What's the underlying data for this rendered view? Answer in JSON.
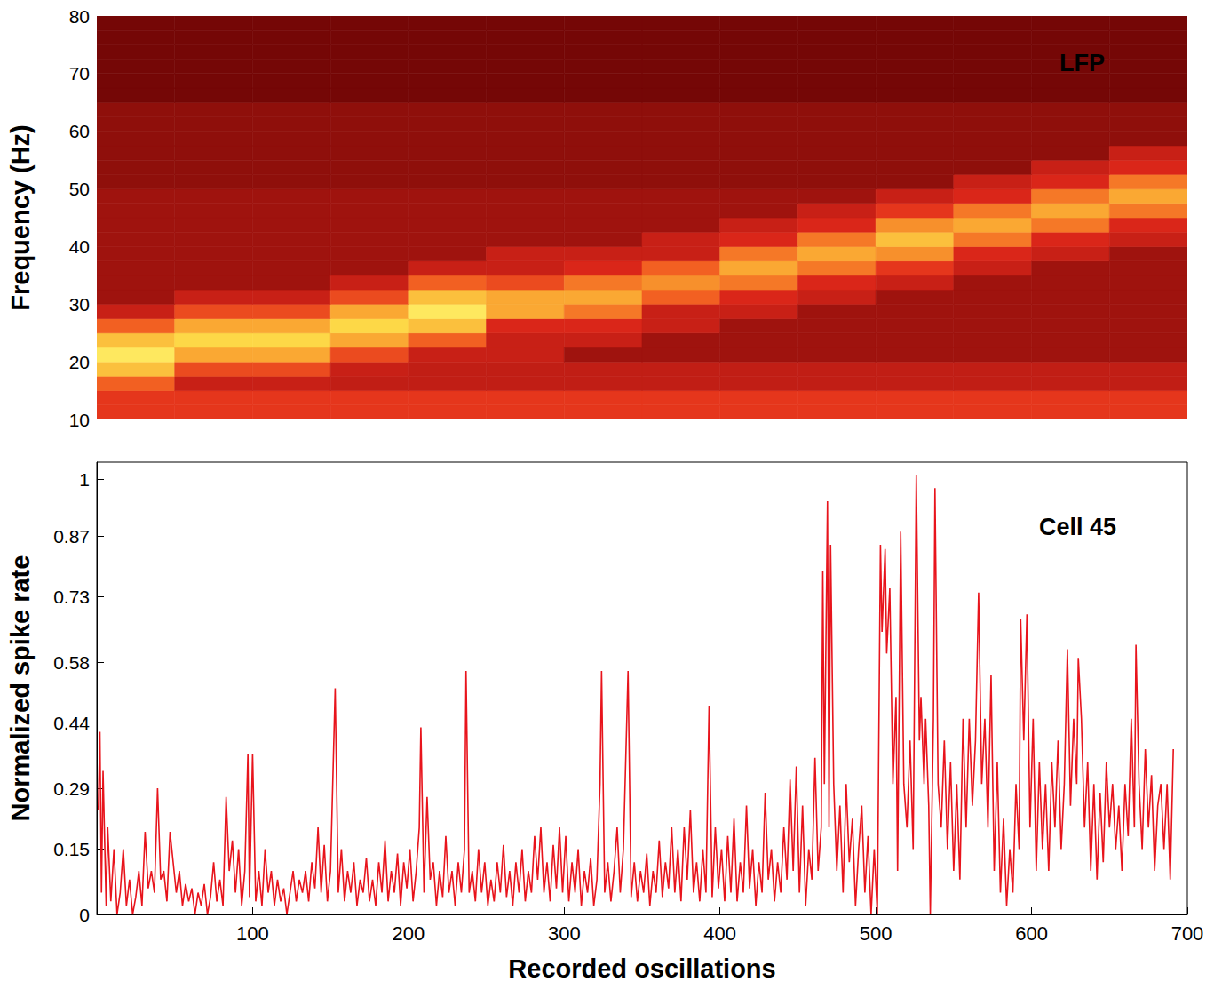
{
  "chart_data": [
    {
      "type": "heatmap",
      "title": "LFP",
      "ylabel": "Frequency (Hz)",
      "xlim": [
        0,
        700
      ],
      "ylim": [
        10,
        80
      ],
      "yticks": [
        10,
        20,
        30,
        40,
        50,
        60,
        70,
        80
      ],
      "tick_labels": "y",
      "x_edges": [
        0,
        50,
        100,
        150,
        200,
        250,
        300,
        350,
        400,
        450,
        500,
        550,
        600,
        650,
        700
      ],
      "y_edges": [
        10,
        12.5,
        15,
        17.5,
        20,
        22.5,
        25,
        27.5,
        30,
        32.5,
        35,
        37.5,
        40,
        42.5,
        45,
        47.5,
        50,
        52.5,
        55,
        57.5,
        60,
        62.5,
        65,
        67.5,
        70,
        72.5,
        75,
        77.5,
        80
      ],
      "zlim": [
        0.2,
        1
      ],
      "cells": [
        [
          0.5,
          0.5,
          0.5,
          0.5,
          0.5,
          0.5,
          0.5,
          0.5,
          0.5,
          0.5,
          0.5,
          0.5,
          0.5,
          0.5
        ],
        [
          0.5,
          0.5,
          0.5,
          0.5,
          0.5,
          0.5,
          0.5,
          0.5,
          0.5,
          0.5,
          0.5,
          0.5,
          0.5,
          0.5
        ],
        [
          0.6,
          0.4,
          0.4,
          0.38,
          0.38,
          0.38,
          0.38,
          0.38,
          0.38,
          0.38,
          0.38,
          0.38,
          0.38,
          0.38
        ],
        [
          0.8,
          0.55,
          0.55,
          0.4,
          0.38,
          0.38,
          0.38,
          0.38,
          0.38,
          0.38,
          0.38,
          0.38,
          0.38,
          0.38
        ],
        [
          0.9,
          0.75,
          0.75,
          0.55,
          0.4,
          0.4,
          0.3,
          0.3,
          0.3,
          0.3,
          0.3,
          0.3,
          0.3,
          0.3
        ],
        [
          0.8,
          0.85,
          0.85,
          0.75,
          0.6,
          0.4,
          0.4,
          0.3,
          0.3,
          0.3,
          0.3,
          0.3,
          0.3,
          0.3
        ],
        [
          0.6,
          0.75,
          0.75,
          0.85,
          0.8,
          0.45,
          0.45,
          0.4,
          0.3,
          0.3,
          0.3,
          0.3,
          0.3,
          0.3
        ],
        [
          0.4,
          0.55,
          0.55,
          0.75,
          0.9,
          0.75,
          0.65,
          0.4,
          0.4,
          0.3,
          0.3,
          0.3,
          0.3,
          0.3
        ],
        [
          0.3,
          0.4,
          0.4,
          0.55,
          0.8,
          0.75,
          0.75,
          0.6,
          0.45,
          0.4,
          0.3,
          0.3,
          0.3,
          0.3
        ],
        [
          0.3,
          0.3,
          0.3,
          0.4,
          0.6,
          0.55,
          0.65,
          0.7,
          0.65,
          0.45,
          0.4,
          0.3,
          0.3,
          0.3
        ],
        [
          0.3,
          0.3,
          0.3,
          0.3,
          0.4,
          0.4,
          0.45,
          0.6,
          0.75,
          0.65,
          0.5,
          0.4,
          0.3,
          0.3
        ],
        [
          0.3,
          0.3,
          0.3,
          0.3,
          0.3,
          0.4,
          0.4,
          0.4,
          0.65,
          0.75,
          0.7,
          0.45,
          0.4,
          0.3
        ],
        [
          0.3,
          0.3,
          0.3,
          0.3,
          0.3,
          0.3,
          0.3,
          0.4,
          0.45,
          0.65,
          0.8,
          0.65,
          0.45,
          0.4
        ],
        [
          0.3,
          0.3,
          0.3,
          0.3,
          0.3,
          0.3,
          0.3,
          0.3,
          0.4,
          0.45,
          0.7,
          0.75,
          0.65,
          0.45
        ],
        [
          0.3,
          0.3,
          0.3,
          0.3,
          0.3,
          0.3,
          0.3,
          0.3,
          0.3,
          0.4,
          0.5,
          0.65,
          0.75,
          0.65
        ],
        [
          0.3,
          0.3,
          0.3,
          0.3,
          0.3,
          0.3,
          0.3,
          0.3,
          0.3,
          0.3,
          0.4,
          0.45,
          0.65,
          0.75
        ],
        [
          0.27,
          0.27,
          0.27,
          0.27,
          0.27,
          0.27,
          0.27,
          0.27,
          0.27,
          0.27,
          0.27,
          0.4,
          0.45,
          0.65
        ],
        [
          0.27,
          0.27,
          0.27,
          0.27,
          0.27,
          0.27,
          0.27,
          0.27,
          0.27,
          0.27,
          0.27,
          0.27,
          0.4,
          0.45
        ],
        [
          0.27,
          0.27,
          0.27,
          0.27,
          0.27,
          0.27,
          0.27,
          0.27,
          0.27,
          0.27,
          0.27,
          0.27,
          0.27,
          0.4
        ],
        [
          0.27,
          0.27,
          0.27,
          0.27,
          0.27,
          0.27,
          0.27,
          0.27,
          0.27,
          0.27,
          0.27,
          0.27,
          0.27,
          0.27
        ],
        [
          0.27,
          0.27,
          0.27,
          0.27,
          0.27,
          0.27,
          0.27,
          0.27,
          0.27,
          0.27,
          0.27,
          0.27,
          0.27,
          0.27
        ],
        [
          0.27,
          0.27,
          0.27,
          0.27,
          0.27,
          0.27,
          0.27,
          0.27,
          0.27,
          0.27,
          0.27,
          0.27,
          0.27,
          0.27
        ],
        [
          0.22,
          0.22,
          0.22,
          0.22,
          0.22,
          0.22,
          0.22,
          0.22,
          0.22,
          0.22,
          0.22,
          0.22,
          0.22,
          0.22
        ],
        [
          0.22,
          0.22,
          0.22,
          0.22,
          0.22,
          0.22,
          0.22,
          0.22,
          0.22,
          0.22,
          0.22,
          0.22,
          0.22,
          0.22
        ],
        [
          0.22,
          0.22,
          0.22,
          0.22,
          0.22,
          0.22,
          0.22,
          0.22,
          0.22,
          0.22,
          0.22,
          0.22,
          0.22,
          0.22
        ],
        [
          0.22,
          0.22,
          0.22,
          0.22,
          0.22,
          0.22,
          0.22,
          0.22,
          0.22,
          0.22,
          0.22,
          0.22,
          0.22,
          0.22
        ],
        [
          0.22,
          0.22,
          0.22,
          0.22,
          0.22,
          0.22,
          0.22,
          0.22,
          0.22,
          0.22,
          0.22,
          0.22,
          0.22,
          0.22
        ],
        [
          0.22,
          0.22,
          0.22,
          0.22,
          0.22,
          0.22,
          0.22,
          0.22,
          0.22,
          0.22,
          0.22,
          0.22,
          0.22,
          0.22
        ]
      ]
    },
    {
      "type": "line",
      "title": "Cell 45",
      "xlabel": "Recorded oscillations",
      "ylabel": "Normalized spike rate",
      "color": "#e8141c",
      "xlim": [
        0,
        700
      ],
      "ylim": [
        0,
        1.04
      ],
      "xticks": [
        100,
        200,
        300,
        400,
        500,
        600,
        700
      ],
      "yticks": [
        0,
        0.15,
        0.29,
        0.44,
        0.58,
        0.73,
        0.87,
        1
      ],
      "x": [
        1,
        2,
        3,
        4,
        6,
        7,
        9,
        11,
        13,
        15,
        17,
        19,
        21,
        23,
        25,
        27,
        29,
        31,
        33,
        35,
        37,
        39,
        41,
        43,
        45,
        47,
        49,
        51,
        53,
        55,
        57,
        59,
        61,
        63,
        65,
        67,
        69,
        71,
        73,
        75,
        77,
        79,
        81,
        83,
        85,
        87,
        89,
        91,
        93,
        95,
        97,
        98,
        100,
        102,
        104,
        106,
        108,
        110,
        112,
        114,
        116,
        118,
        120,
        122,
        124,
        126,
        128,
        130,
        132,
        134,
        136,
        138,
        140,
        142,
        144,
        146,
        148,
        150,
        153,
        155,
        157,
        159,
        161,
        163,
        165,
        167,
        169,
        171,
        173,
        175,
        177,
        179,
        181,
        183,
        185,
        187,
        189,
        191,
        193,
        195,
        197,
        199,
        201,
        203,
        205,
        207,
        208,
        210,
        212,
        214,
        216,
        218,
        220,
        222,
        224,
        226,
        228,
        230,
        232,
        234,
        236,
        237,
        239,
        241,
        243,
        245,
        247,
        249,
        251,
        253,
        255,
        257,
        259,
        261,
        263,
        265,
        267,
        269,
        271,
        273,
        275,
        277,
        279,
        281,
        283,
        285,
        287,
        289,
        291,
        293,
        295,
        297,
        299,
        301,
        303,
        305,
        307,
        309,
        311,
        313,
        315,
        317,
        319,
        321,
        323,
        324,
        326,
        328,
        330,
        332,
        334,
        336,
        338,
        341,
        343,
        345,
        347,
        349,
        351,
        353,
        355,
        357,
        359,
        361,
        363,
        365,
        367,
        369,
        371,
        373,
        375,
        377,
        379,
        381,
        383,
        385,
        387,
        389,
        391,
        393,
        395,
        397,
        399,
        401,
        403,
        405,
        407,
        409,
        411,
        413,
        415,
        417,
        419,
        421,
        423,
        425,
        427,
        429,
        431,
        433,
        435,
        437,
        439,
        441,
        443,
        445,
        447,
        449,
        451,
        453,
        455,
        457,
        459,
        461,
        463,
        465,
        466,
        467,
        469,
        470,
        471,
        473,
        475,
        477,
        479,
        481,
        483,
        485,
        487,
        489,
        491,
        493,
        495,
        497,
        499,
        501,
        503,
        504,
        506,
        507,
        509,
        511,
        513,
        514,
        516,
        518,
        520,
        522,
        524,
        526,
        528,
        529,
        531,
        532,
        534,
        535,
        537,
        538,
        540,
        542,
        544,
        546,
        548,
        550,
        552,
        554,
        556,
        558,
        560,
        562,
        564,
        566,
        568,
        570,
        572,
        574,
        576,
        578,
        580,
        582,
        584,
        586,
        588,
        590,
        592,
        593,
        595,
        597,
        599,
        601,
        603,
        605,
        607,
        609,
        611,
        613,
        615,
        617,
        619,
        621,
        623,
        625,
        627,
        629,
        630,
        632,
        634,
        636,
        638,
        640,
        642,
        644,
        646,
        648,
        650,
        652,
        654,
        656,
        658,
        660,
        662,
        664,
        666,
        667,
        669,
        671,
        673,
        675,
        677,
        679,
        681,
        683,
        685,
        687,
        689,
        691
      ],
      "values": [
        0.24,
        0.42,
        0.05,
        0.33,
        0.02,
        0.2,
        0.03,
        0.15,
        0,
        0.05,
        0.15,
        0.02,
        0.08,
        0,
        0.04,
        0.1,
        0.02,
        0.19,
        0.06,
        0.1,
        0.05,
        0.29,
        0.08,
        0.1,
        0.03,
        0.19,
        0.12,
        0.05,
        0.1,
        0.02,
        0.07,
        0.03,
        0.06,
        0,
        0.05,
        0.02,
        0.07,
        0,
        0.04,
        0.12,
        0.03,
        0.08,
        0.02,
        0.27,
        0.1,
        0.17,
        0.05,
        0.15,
        0.02,
        0.1,
        0.37,
        0.04,
        0.37,
        0.03,
        0.1,
        0.02,
        0.15,
        0.05,
        0.1,
        0.02,
        0.08,
        0.03,
        0.06,
        0,
        0.05,
        0.1,
        0.03,
        0.08,
        0.05,
        0.1,
        0.03,
        0.12,
        0.06,
        0.2,
        0.05,
        0.16,
        0.03,
        0.1,
        0.52,
        0.05,
        0.15,
        0.03,
        0.1,
        0.05,
        0.12,
        0.02,
        0.08,
        0.05,
        0.13,
        0.03,
        0.08,
        0.02,
        0.12,
        0.05,
        0.17,
        0.03,
        0.1,
        0.05,
        0.14,
        0.02,
        0.12,
        0.06,
        0.15,
        0.03,
        0.1,
        0.2,
        0.43,
        0.05,
        0.27,
        0.08,
        0.12,
        0.02,
        0.1,
        0.04,
        0.18,
        0.05,
        0.1,
        0.02,
        0.12,
        0.05,
        0.15,
        0.56,
        0.05,
        0.1,
        0.03,
        0.15,
        0.05,
        0.12,
        0.02,
        0.08,
        0.03,
        0.12,
        0.05,
        0.16,
        0.04,
        0.1,
        0.02,
        0.12,
        0.05,
        0.15,
        0.03,
        0.1,
        0.05,
        0.18,
        0.08,
        0.2,
        0.05,
        0.12,
        0.03,
        0.16,
        0.06,
        0.2,
        0.05,
        0.18,
        0.03,
        0.12,
        0.05,
        0.15,
        0.02,
        0.1,
        0.05,
        0.13,
        0.02,
        0.08,
        0.3,
        0.56,
        0.05,
        0.12,
        0.03,
        0.1,
        0.2,
        0.05,
        0.15,
        0.56,
        0.04,
        0.12,
        0.03,
        0.1,
        0.05,
        0.14,
        0.02,
        0.1,
        0.05,
        0.17,
        0.04,
        0.12,
        0.06,
        0.2,
        0.05,
        0.15,
        0.03,
        0.2,
        0.08,
        0.24,
        0.05,
        0.12,
        0.03,
        0.15,
        0.05,
        0.48,
        0.04,
        0.2,
        0.06,
        0.15,
        0.03,
        0.18,
        0.05,
        0.22,
        0.03,
        0.12,
        0.05,
        0.25,
        0.06,
        0.15,
        0.02,
        0.12,
        0.05,
        0.28,
        0.08,
        0.15,
        0.03,
        0.12,
        0.05,
        0.2,
        0.08,
        0.31,
        0.1,
        0.34,
        0.05,
        0.25,
        0.02,
        0.15,
        0.08,
        0.36,
        0.1,
        0.2,
        0.79,
        0.3,
        0.95,
        0.2,
        0.85,
        0.3,
        0.1,
        0.25,
        0.05,
        0.3,
        0.12,
        0.22,
        0.02,
        0.15,
        0.25,
        0.05,
        0.18,
        0,
        0.15,
        0,
        0.85,
        0.65,
        0.84,
        0.6,
        0.75,
        0.3,
        0.5,
        0.1,
        0.88,
        0.3,
        0.2,
        0.4,
        0.15,
        1.01,
        0.4,
        0.5,
        0.3,
        0.45,
        0.25,
        0,
        0.45,
        0.98,
        0.3,
        0.2,
        0.4,
        0.15,
        0.35,
        0.1,
        0.3,
        0.08,
        0.45,
        0.2,
        0.45,
        0.25,
        0.4,
        0.74,
        0.3,
        0.45,
        0.2,
        0.55,
        0.1,
        0.35,
        0.05,
        0.22,
        0.02,
        0.15,
        0.05,
        0.3,
        0.15,
        0.68,
        0.4,
        0.69,
        0.2,
        0.45,
        0.1,
        0.35,
        0.15,
        0.3,
        0.1,
        0.35,
        0.2,
        0.4,
        0.15,
        0.3,
        0.61,
        0.25,
        0.45,
        0.3,
        0.59,
        0.45,
        0.2,
        0.35,
        0.1,
        0.3,
        0.08,
        0.28,
        0.12,
        0.35,
        0.2,
        0.3,
        0.15,
        0.25,
        0.1,
        0.3,
        0.18,
        0.45,
        0.2,
        0.62,
        0.3,
        0.15,
        0.38,
        0.2,
        0.32,
        0.1,
        0.25,
        0.3,
        0.15,
        0.3,
        0.08,
        0.38
      ]
    }
  ]
}
